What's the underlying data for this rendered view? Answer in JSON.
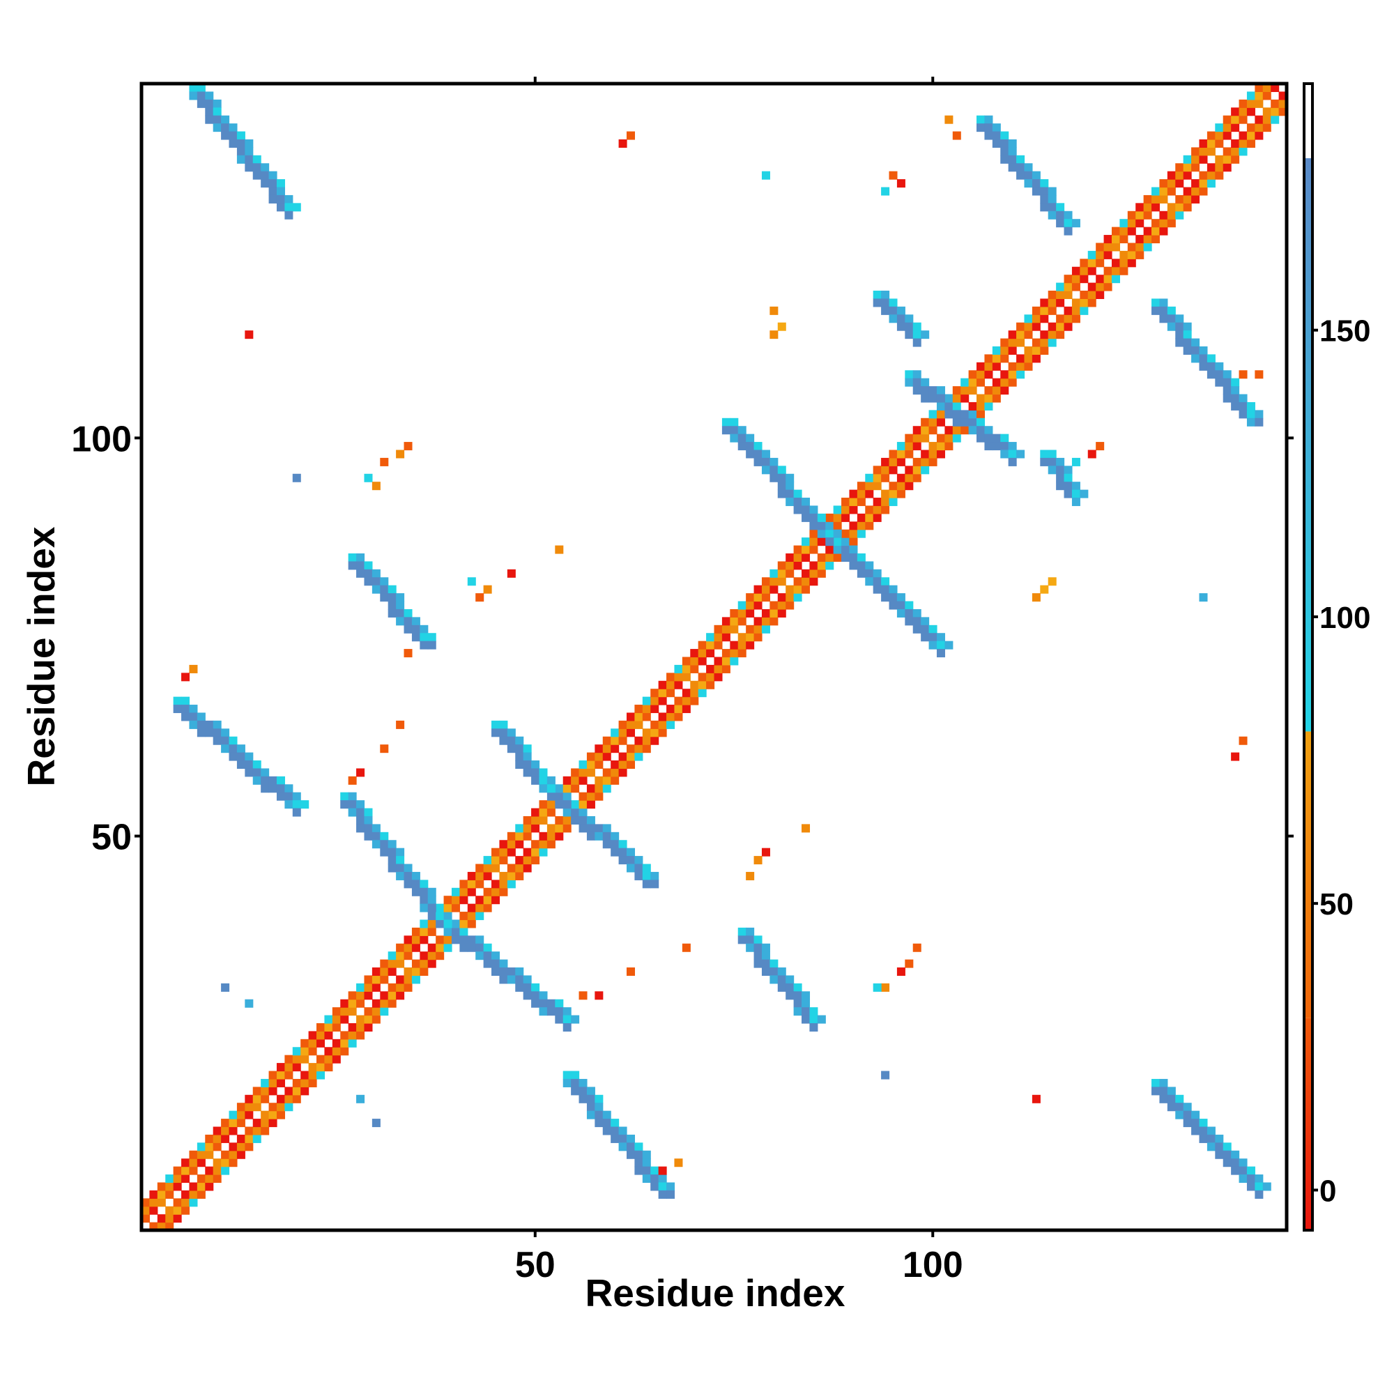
{
  "chart_data": {
    "type": "heatmap",
    "title": "",
    "xlabel": "Residue index",
    "ylabel": "Residue index",
    "xlim": [
      0.5,
      144.5
    ],
    "ylim": [
      0.5,
      144.5
    ],
    "x_ticks": [
      50,
      100
    ],
    "y_ticks": [
      50,
      100
    ],
    "x_tick_labels": [
      "50",
      "100"
    ],
    "y_tick_labels": [
      "50",
      "100"
    ],
    "colorbar": {
      "ticks": [
        0,
        50,
        100,
        150
      ],
      "tick_labels": [
        "0",
        "50",
        "100",
        "150"
      ],
      "range": [
        -7,
        193
      ],
      "bands": [
        {
          "from": -7,
          "to": 30,
          "color": "#e8160e"
        },
        {
          "from": 30,
          "to": 80,
          "color": "#f07a0a"
        },
        {
          "from": 80,
          "to": 180,
          "color": "#23d4e6"
        },
        {
          "from": 180,
          "to": 193,
          "color": "#ffffff"
        }
      ],
      "band_gradients": [
        [
          "#e8160e",
          "#f05a0a"
        ],
        [
          "#f0660a",
          "#f0a010"
        ],
        [
          "#23d4e6",
          "#5a8ac8"
        ]
      ]
    },
    "cell_colors": {
      "red": "#e8160e",
      "orange_red": "#f05a0a",
      "orange": "#f08a0a",
      "amber": "#f5a813",
      "cyan": "#22d3e5",
      "light_blue": "#3aaedb",
      "steel_blue": "#5689c4"
    },
    "diagonal_band": {
      "from": 1,
      "to": 144,
      "half_width": 3
    },
    "strands": [
      {
        "i0": 7,
        "j0": 144,
        "i1": 19,
        "j1": 129
      },
      {
        "i0": 106,
        "j0": 140,
        "i1": 117,
        "j1": 127
      },
      {
        "i0": 128,
        "j0": 117,
        "i1": 140,
        "j1": 103
      },
      {
        "i0": 74,
        "j0": 102,
        "i1": 87,
        "j1": 88
      },
      {
        "i0": 88,
        "j0": 87,
        "i1": 101,
        "j1": 74
      },
      {
        "i0": 27,
        "j0": 85,
        "i1": 36,
        "j1": 75
      },
      {
        "i0": 5,
        "j0": 67,
        "i1": 20,
        "j1": 54
      },
      {
        "i0": 26,
        "j0": 55,
        "i1": 38,
        "j1": 40
      },
      {
        "i0": 39,
        "j0": 39,
        "i1": 54,
        "j1": 27
      },
      {
        "i0": 45,
        "j0": 64,
        "i1": 51,
        "j1": 57
      },
      {
        "i0": 52,
        "j0": 56,
        "i1": 64,
        "j1": 45
      },
      {
        "i0": 76,
        "j0": 38,
        "i1": 85,
        "j1": 27
      },
      {
        "i0": 54,
        "j0": 20,
        "i1": 66,
        "j1": 6
      },
      {
        "i0": 128,
        "j0": 19,
        "i1": 141,
        "j1": 6
      },
      {
        "i0": 93,
        "j0": 118,
        "i1": 98,
        "j1": 113
      },
      {
        "i0": 114,
        "j0": 98,
        "i1": 118,
        "j1": 93
      },
      {
        "i0": 97,
        "j0": 108,
        "i1": 110,
        "j1": 98
      }
    ],
    "scattered_contacts": [
      [
        61,
        137,
        "red"
      ],
      [
        62,
        138,
        "orange_red"
      ],
      [
        95,
        133,
        "orange_red"
      ],
      [
        96,
        132,
        "red"
      ],
      [
        94,
        131,
        "cyan"
      ],
      [
        102,
        140,
        "orange"
      ],
      [
        103,
        138,
        "orange_red"
      ],
      [
        79,
        133,
        "cyan"
      ],
      [
        80,
        116,
        "orange"
      ],
      [
        81,
        114,
        "amber"
      ],
      [
        80,
        113,
        "orange"
      ],
      [
        14,
        113,
        "red"
      ],
      [
        34,
        99,
        "orange_red"
      ],
      [
        33,
        98,
        "orange"
      ],
      [
        31,
        97,
        "orange_red"
      ],
      [
        29,
        95,
        "cyan"
      ],
      [
        30,
        94,
        "orange"
      ],
      [
        20,
        95,
        "steel_blue"
      ],
      [
        53,
        86,
        "orange"
      ],
      [
        47,
        83,
        "red"
      ],
      [
        42,
        82,
        "cyan"
      ],
      [
        44,
        81,
        "orange"
      ],
      [
        43,
        80,
        "orange_red"
      ],
      [
        34,
        73,
        "orange_red"
      ],
      [
        7,
        71,
        "orange"
      ],
      [
        6,
        70,
        "red"
      ],
      [
        33,
        64,
        "orange_red"
      ],
      [
        31,
        61,
        "orange_red"
      ],
      [
        28,
        58,
        "red"
      ],
      [
        27,
        57,
        "orange_red"
      ],
      [
        84,
        51,
        "orange"
      ],
      [
        79,
        48,
        "red"
      ],
      [
        78,
        47,
        "orange"
      ],
      [
        77,
        45,
        "orange"
      ],
      [
        69,
        36,
        "orange_red"
      ],
      [
        98,
        36,
        "orange_red"
      ],
      [
        97,
        34,
        "orange_red"
      ],
      [
        96,
        33,
        "red"
      ],
      [
        94,
        31,
        "orange"
      ],
      [
        93,
        31,
        "cyan"
      ],
      [
        62,
        33,
        "orange_red"
      ],
      [
        58,
        30,
        "red"
      ],
      [
        56,
        30,
        "orange_red"
      ],
      [
        11,
        31,
        "steel_blue"
      ],
      [
        14,
        29,
        "light_blue"
      ],
      [
        94,
        20,
        "steel_blue"
      ],
      [
        28,
        17,
        "light_blue"
      ],
      [
        30,
        14,
        "steel_blue"
      ],
      [
        113,
        17,
        "red"
      ],
      [
        68,
        9,
        "orange"
      ],
      [
        66,
        8,
        "red"
      ],
      [
        121,
        99,
        "orange_red"
      ],
      [
        120,
        98,
        "red"
      ],
      [
        118,
        97,
        "cyan"
      ],
      [
        114,
        81,
        "amber"
      ],
      [
        115,
        82,
        "amber"
      ],
      [
        113,
        80,
        "orange"
      ],
      [
        134,
        80,
        "light_blue"
      ],
      [
        139,
        62,
        "orange_red"
      ],
      [
        138,
        60,
        "red"
      ],
      [
        139,
        108,
        "orange_red"
      ],
      [
        141,
        108,
        "orange_red"
      ]
    ]
  }
}
